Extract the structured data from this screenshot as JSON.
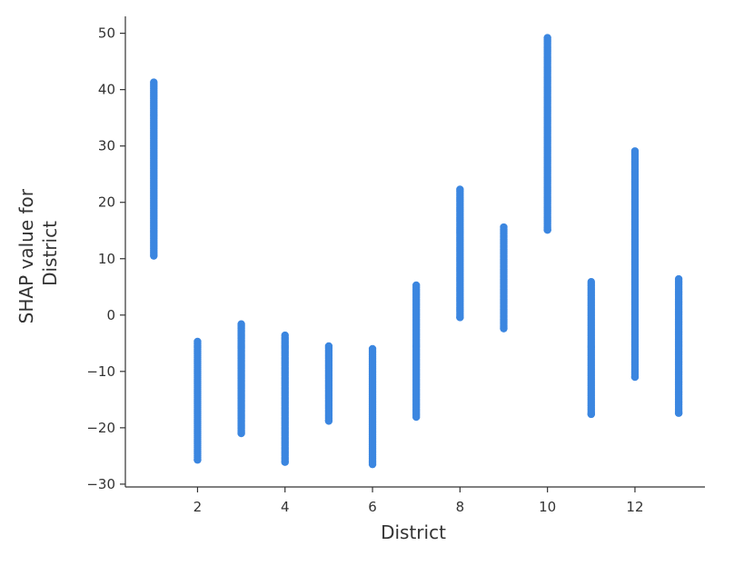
{
  "chart_data": {
    "type": "scatter",
    "title": "",
    "xlabel": "District",
    "ylabel_lines": [
      "SHAP value for",
      "District"
    ],
    "xlim": [
      0.35,
      13.6
    ],
    "ylim": [
      -30.5,
      53
    ],
    "xticks": [
      2,
      4,
      6,
      8,
      10,
      12
    ],
    "yticks": [
      -30,
      -20,
      -10,
      0,
      10,
      20,
      30,
      40,
      50
    ],
    "grid": false,
    "legend": "none",
    "point_color": "#3b86e0",
    "series": [
      {
        "points": [
          {
            "x": 1,
            "ymin": 10.5,
            "ymax": 41.3
          },
          {
            "x": 2,
            "ymin": -25.7,
            "ymax": -4.7
          },
          {
            "x": 3,
            "ymin": -21.0,
            "ymax": -1.6
          },
          {
            "x": 4,
            "ymin": -26.1,
            "ymax": -3.6
          },
          {
            "x": 5,
            "ymin": -18.8,
            "ymax": -5.5
          },
          {
            "x": 6,
            "ymin": -26.5,
            "ymax": -6.0
          },
          {
            "x": 7,
            "ymin": -18.1,
            "ymax": 5.3
          },
          {
            "x": 8,
            "ymin": -0.4,
            "ymax": 22.3
          },
          {
            "x": 9,
            "ymin": -2.4,
            "ymax": 15.6
          },
          {
            "x": 10,
            "ymin": 15.1,
            "ymax": 49.2
          },
          {
            "x": 11,
            "ymin": -17.6,
            "ymax": 5.9
          },
          {
            "x": 12,
            "ymin": -11.0,
            "ymax": 29.1
          },
          {
            "x": 13,
            "ymin": -17.4,
            "ymax": 6.4
          }
        ]
      }
    ]
  }
}
